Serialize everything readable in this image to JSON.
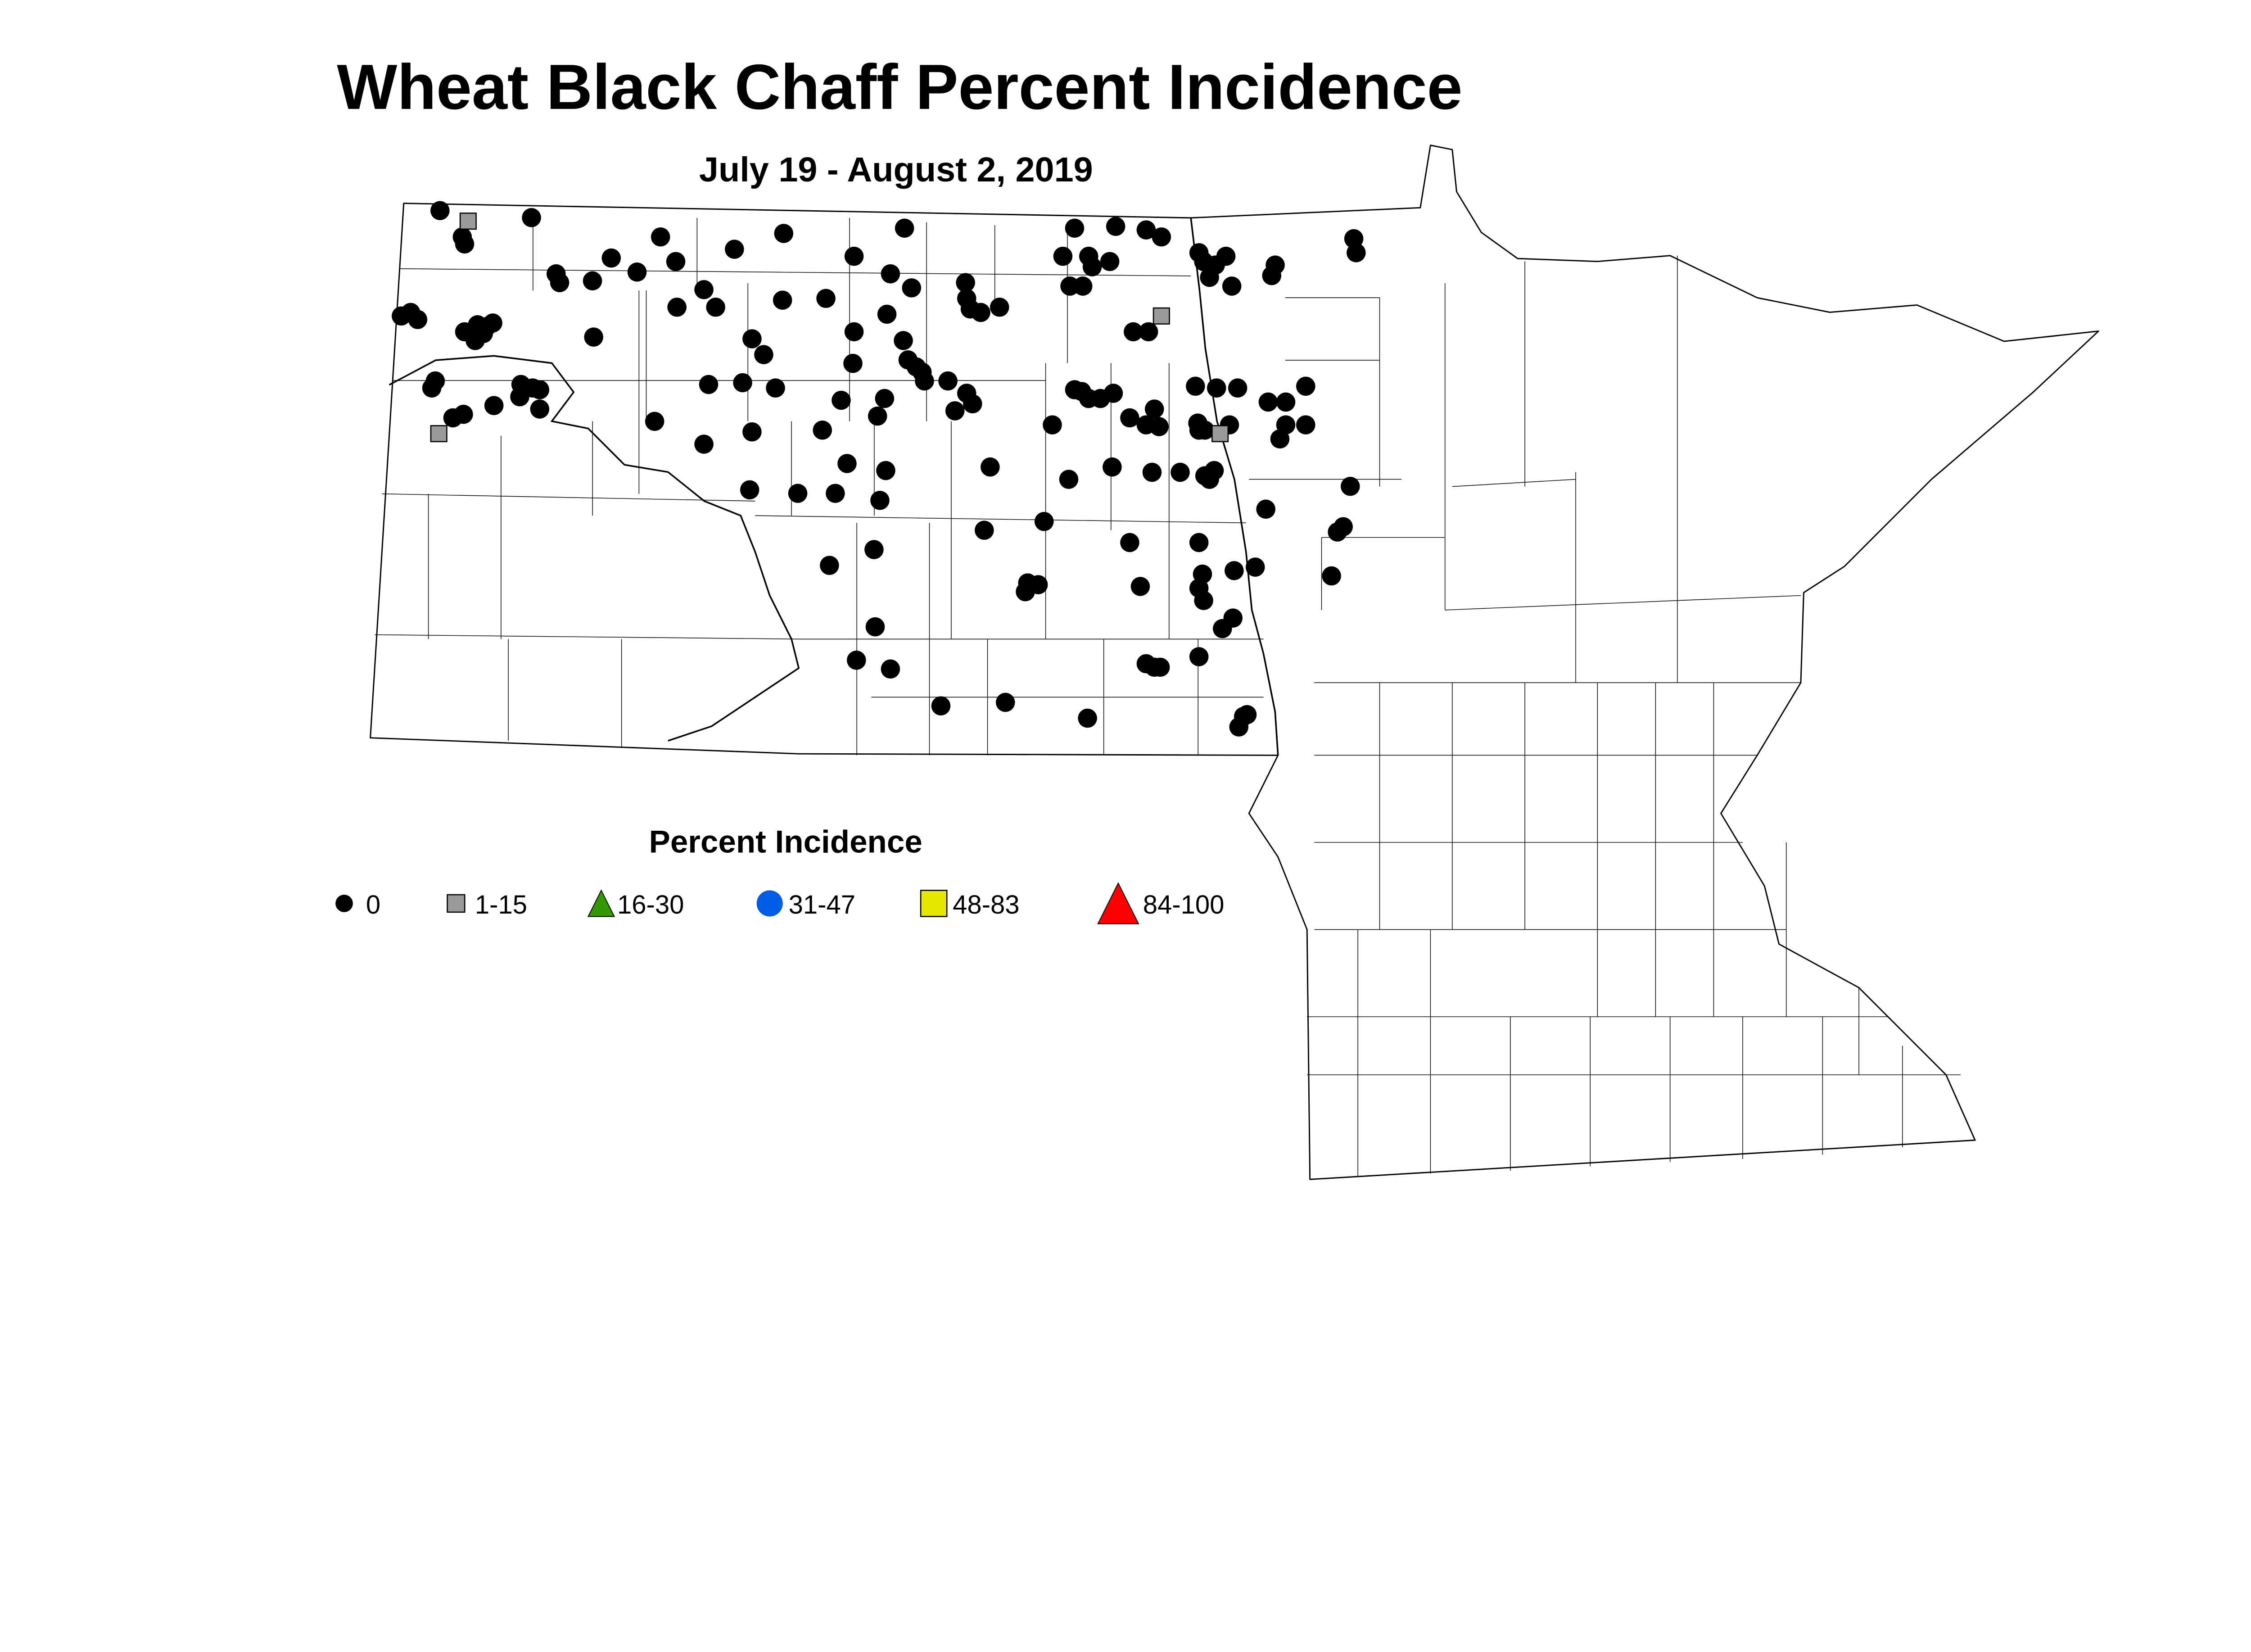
{
  "title": "Wheat Black Chaff Percent Incidence",
  "subtitle": "July 19 - August 2, 2019",
  "legend": {
    "title": "Percent Incidence",
    "placement": "bottom-left",
    "items": [
      {
        "label": "0",
        "shape": "dot",
        "color": "#000000"
      },
      {
        "label": "1-15",
        "shape": "square",
        "color": "#999999"
      },
      {
        "label": "16-30",
        "shape": "triangle",
        "color": "#339900"
      },
      {
        "label": "31-47",
        "shape": "circle",
        "color": "#005ce6"
      },
      {
        "label": "48-83",
        "shape": "square",
        "color": "#e6e600"
      },
      {
        "label": "84-100",
        "shape": "triangle",
        "color": "#ff0000"
      }
    ]
  },
  "chart_data": {
    "type": "scatter",
    "region": "North Dakota and Minnesota county map",
    "coordinate_units": "longitude/latitude (degrees)",
    "series": [
      {
        "name": "0",
        "points": [
          [
            -103.58,
            49.0
          ],
          [
            -103.39,
            48.85
          ],
          [
            -103.37,
            48.81
          ],
          [
            -102.8,
            48.96
          ],
          [
            -102.59,
            48.64
          ],
          [
            -102.56,
            48.59
          ],
          [
            -102.28,
            48.6
          ],
          [
            -102.12,
            48.73
          ],
          [
            -101.9,
            48.65
          ],
          [
            -101.7,
            48.85
          ],
          [
            -101.57,
            48.71
          ],
          [
            -101.07,
            48.78
          ],
          [
            -100.65,
            48.87
          ],
          [
            -99.62,
            48.9
          ],
          [
            -100.05,
            48.74
          ],
          [
            -99.74,
            48.64
          ],
          [
            -99.56,
            48.56
          ],
          [
            -101.33,
            48.55
          ],
          [
            -101.56,
            48.45
          ],
          [
            -101.23,
            48.45
          ],
          [
            -100.66,
            48.49
          ],
          [
            -100.29,
            48.5
          ],
          [
            -103.91,
            48.4
          ],
          [
            -103.83,
            48.42
          ],
          [
            -103.77,
            48.38
          ],
          [
            -103.37,
            48.31
          ],
          [
            -103.26,
            48.35
          ],
          [
            -103.18,
            48.34
          ],
          [
            -103.13,
            48.36
          ],
          [
            -103.28,
            48.26
          ],
          [
            -103.21,
            48.3
          ],
          [
            -102.27,
            48.28
          ],
          [
            -100.92,
            48.27
          ],
          [
            -100.82,
            48.18
          ],
          [
            -100.05,
            48.31
          ],
          [
            -100.06,
            48.13
          ],
          [
            -99.77,
            48.41
          ],
          [
            -99.63,
            48.26
          ],
          [
            -99.59,
            48.15
          ],
          [
            -99.52,
            48.11
          ],
          [
            -99.47,
            48.08
          ],
          [
            -99.45,
            48.03
          ],
          [
            -99.25,
            48.03
          ],
          [
            -99.09,
            47.96
          ],
          [
            -99.04,
            47.9
          ],
          [
            -99.19,
            47.86
          ],
          [
            -101.29,
            48.01
          ],
          [
            -101.0,
            48.02
          ],
          [
            -100.72,
            47.99
          ],
          [
            -100.16,
            47.92
          ],
          [
            -99.79,
            47.93
          ],
          [
            -103.62,
            48.03
          ],
          [
            -103.65,
            47.99
          ],
          [
            -102.89,
            48.01
          ],
          [
            -102.9,
            47.94
          ],
          [
            -102.79,
            47.99
          ],
          [
            -102.73,
            47.98
          ],
          [
            -103.12,
            47.89
          ],
          [
            -102.73,
            47.87
          ],
          [
            -103.38,
            47.84
          ],
          [
            -103.47,
            47.82
          ],
          [
            -101.75,
            47.8
          ],
          [
            -101.33,
            47.67
          ],
          [
            -100.92,
            47.74
          ],
          [
            -100.32,
            47.75
          ],
          [
            -99.85,
            47.83
          ],
          [
            -100.11,
            47.56
          ],
          [
            -99.78,
            47.52
          ],
          [
            -98.89,
            47.54
          ],
          [
            -100.53,
            47.39
          ],
          [
            -100.21,
            47.39
          ],
          [
            -100.94,
            47.41
          ],
          [
            -99.83,
            47.35
          ],
          [
            -99.1,
            48.59
          ],
          [
            -99.09,
            48.5
          ],
          [
            -99.06,
            48.44
          ],
          [
            -98.97,
            48.42
          ],
          [
            -98.81,
            48.45
          ],
          [
            -98.17,
            48.9
          ],
          [
            -97.82,
            48.91
          ],
          [
            -97.56,
            48.89
          ],
          [
            -97.43,
            48.85
          ],
          [
            -98.27,
            48.74
          ],
          [
            -98.05,
            48.74
          ],
          [
            -97.87,
            48.71
          ],
          [
            -98.21,
            48.57
          ],
          [
            -98.1,
            48.57
          ],
          [
            -98.02,
            48.68
          ],
          [
            -97.11,
            48.76
          ],
          [
            -97.07,
            48.71
          ],
          [
            -96.97,
            48.69
          ],
          [
            -96.88,
            48.74
          ],
          [
            -97.02,
            48.62
          ],
          [
            -96.83,
            48.57
          ],
          [
            -96.46,
            48.69
          ],
          [
            -96.49,
            48.63
          ],
          [
            -95.79,
            48.84
          ],
          [
            -95.77,
            48.76
          ],
          [
            -97.67,
            48.31
          ],
          [
            -97.54,
            48.31
          ],
          [
            -98.17,
            47.98
          ],
          [
            -98.11,
            47.97
          ],
          [
            -98.05,
            47.93
          ],
          [
            -97.95,
            47.93
          ],
          [
            -97.84,
            47.96
          ],
          [
            -98.36,
            47.78
          ],
          [
            -97.7,
            47.82
          ],
          [
            -97.56,
            47.78
          ],
          [
            -97.45,
            47.77
          ],
          [
            -97.49,
            47.87
          ],
          [
            -97.14,
            48.0
          ],
          [
            -96.96,
            47.99
          ],
          [
            -96.78,
            47.99
          ],
          [
            -97.12,
            47.79
          ],
          [
            -97.06,
            47.75
          ],
          [
            -97.11,
            47.75
          ],
          [
            -96.85,
            47.78
          ],
          [
            -96.52,
            47.91
          ],
          [
            -96.37,
            47.91
          ],
          [
            -96.2,
            48.0
          ],
          [
            -96.37,
            47.78
          ],
          [
            -96.2,
            47.78
          ],
          [
            -96.42,
            47.7
          ],
          [
            -98.22,
            47.47
          ],
          [
            -97.85,
            47.54
          ],
          [
            -97.51,
            47.51
          ],
          [
            -97.27,
            47.51
          ],
          [
            -97.06,
            47.49
          ],
          [
            -96.98,
            47.52
          ],
          [
            -97.02,
            47.47
          ],
          [
            -98.43,
            47.23
          ],
          [
            -98.94,
            47.18
          ],
          [
            -96.54,
            47.3
          ],
          [
            -95.82,
            47.43
          ],
          [
            -95.88,
            47.2
          ],
          [
            -95.93,
            47.17
          ],
          [
            -100.26,
            46.98
          ],
          [
            -99.88,
            47.07
          ],
          [
            -98.57,
            46.88
          ],
          [
            -98.48,
            46.87
          ],
          [
            -98.59,
            46.83
          ],
          [
            -97.7,
            47.11
          ],
          [
            -97.61,
            46.86
          ],
          [
            -97.11,
            47.11
          ],
          [
            -97.08,
            46.93
          ],
          [
            -97.11,
            46.85
          ],
          [
            -97.07,
            46.78
          ],
          [
            -96.81,
            46.95
          ],
          [
            -96.63,
            46.97
          ],
          [
            -95.98,
            46.92
          ],
          [
            -96.82,
            46.68
          ],
          [
            -96.91,
            46.62
          ],
          [
            -99.87,
            46.63
          ],
          [
            -100.03,
            46.44
          ],
          [
            -99.74,
            46.39
          ],
          [
            -99.31,
            46.18
          ],
          [
            -98.76,
            46.2
          ],
          [
            -98.06,
            46.11
          ],
          [
            -97.56,
            46.42
          ],
          [
            -97.49,
            46.4
          ],
          [
            -97.44,
            46.4
          ],
          [
            -97.11,
            46.46
          ],
          [
            -96.73,
            46.12
          ],
          [
            -96.7,
            46.13
          ],
          [
            -96.77,
            46.06
          ]
        ]
      },
      {
        "name": "1-15",
        "points": [
          [
            -103.34,
            48.94
          ],
          [
            -103.59,
            47.73
          ],
          [
            -97.43,
            48.4
          ],
          [
            -96.93,
            47.73
          ]
        ]
      },
      {
        "name": "16-30",
        "points": []
      },
      {
        "name": "31-47",
        "points": []
      },
      {
        "name": "48-83",
        "points": []
      },
      {
        "name": "84-100",
        "points": []
      }
    ]
  }
}
